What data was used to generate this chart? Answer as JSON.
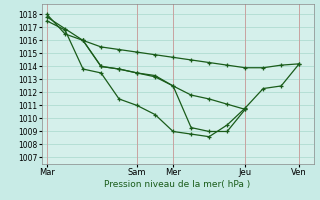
{
  "background_color": "#c8ebe6",
  "plot_bg_color": "#d5f0eb",
  "grid_color": "#a8d8cc",
  "line_color": "#1a5c1a",
  "vline_color": "#cc9999",
  "x_ticks_labels": [
    "Mar",
    "Sam Mer",
    "Jeu",
    "Ven"
  ],
  "x_ticks_pos": [
    0,
    5.5,
    11,
    14
  ],
  "xlabel": "Pression niveau de la mer( hPa )",
  "ylim": [
    1006.5,
    1018.8
  ],
  "yticks": [
    1007,
    1008,
    1009,
    1010,
    1011,
    1012,
    1013,
    1014,
    1015,
    1016,
    1017,
    1018
  ],
  "xlim": [
    -0.3,
    14.8
  ],
  "vlines": [
    0,
    5,
    7,
    11,
    14
  ],
  "s1_x": [
    0,
    1,
    2,
    3,
    4,
    5,
    6,
    7,
    8,
    9,
    10,
    11,
    12,
    13,
    14
  ],
  "s1_y": [
    1018,
    1016.5,
    1016.0,
    1015.5,
    1015.3,
    1015.1,
    1014.9,
    1014.7,
    1014.5,
    1014.3,
    1014.1,
    1013.9,
    1013.9,
    1014.1,
    1014.2
  ],
  "s2_x": [
    0,
    1,
    2,
    3,
    4,
    5,
    6,
    7,
    8,
    9,
    10,
    11,
    12,
    13,
    14
  ],
  "s2_y": [
    1017.5,
    1016.8,
    1013.8,
    1013.5,
    1011.5,
    1011.0,
    1010.3,
    1009.0,
    1008.8,
    1008.6,
    1009.5,
    1010.8,
    1012.3,
    1012.5,
    1014.2
  ],
  "s3_x": [
    2,
    3,
    4,
    5,
    6,
    7,
    8,
    9,
    10,
    11
  ],
  "s3_y": [
    1016.0,
    1014.0,
    1013.8,
    1013.5,
    1013.3,
    1012.5,
    1011.8,
    1011.5,
    1011.1,
    1010.7
  ],
  "s4_x": [
    0,
    1,
    2,
    3,
    4,
    5,
    6,
    7,
    8,
    9,
    10,
    11
  ],
  "s4_y": [
    1017.8,
    1016.9,
    1016.0,
    1014.0,
    1013.8,
    1013.5,
    1013.2,
    1012.5,
    1009.3,
    1009.0,
    1009.0,
    1010.7
  ]
}
